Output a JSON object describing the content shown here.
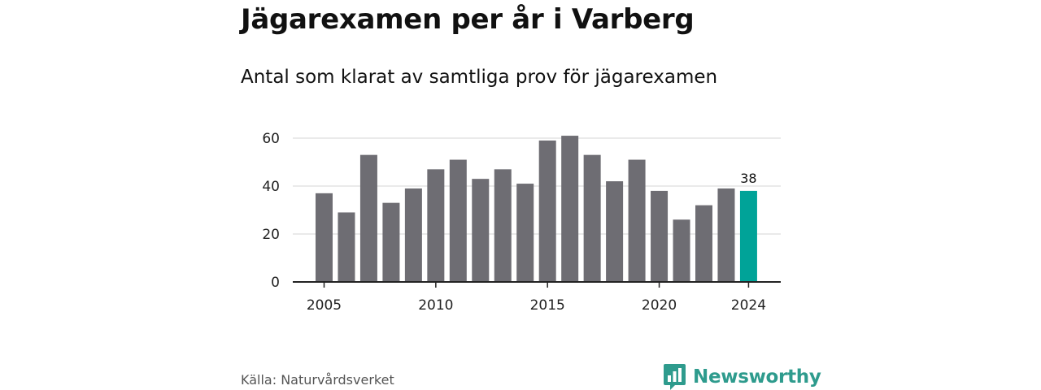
{
  "title": "Jägarexamen per år i Varberg",
  "subtitle": "Antal som klarat av samtliga prov för jägarexamen",
  "source": "Källa: Naturvårdsverket",
  "logo": {
    "text": "Newsworthy",
    "icon": "newsworthy-logo-icon",
    "color": "#2e9b8d"
  },
  "colors": {
    "bar": "#6e6d73",
    "highlight": "#00a398",
    "grid": "#d6d6d6",
    "axis": "#222222"
  },
  "chart_data": {
    "type": "bar",
    "title": "Jägarexamen per år i Varberg",
    "subtitle": "Antal som klarat av samtliga prov för jägarexamen",
    "xlabel": "",
    "ylabel": "",
    "categories": [
      2005,
      2006,
      2007,
      2008,
      2009,
      2010,
      2011,
      2012,
      2013,
      2014,
      2015,
      2016,
      2017,
      2018,
      2019,
      2020,
      2021,
      2022,
      2023,
      2024
    ],
    "values": [
      37,
      29,
      53,
      33,
      39,
      47,
      51,
      43,
      47,
      41,
      59,
      61,
      53,
      42,
      51,
      38,
      26,
      32,
      39,
      38
    ],
    "highlight_index": 19,
    "data_labels": [
      {
        "index": 19,
        "text": "38"
      }
    ],
    "ylim": [
      0,
      60
    ],
    "yticks": [
      0,
      20,
      40,
      60
    ],
    "xticks": [
      2005,
      2010,
      2015,
      2020,
      2024
    ],
    "grid": true,
    "legend": "none"
  }
}
